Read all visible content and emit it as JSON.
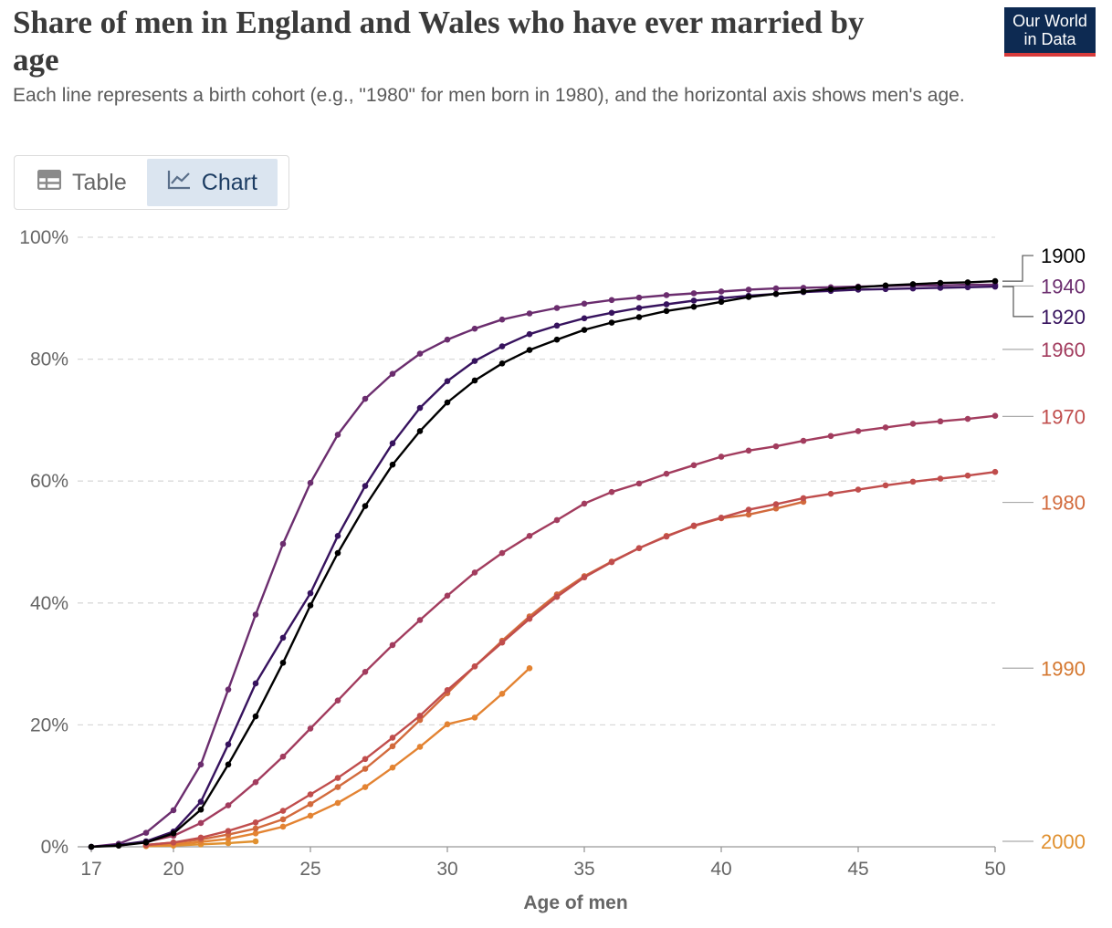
{
  "header": {
    "title": "Share of men in England and Wales who have ever married by age",
    "subtitle": "Each line represents a birth cohort (e.g., \"1980\" for men born in 1980), and the horizontal axis shows men's age.",
    "logo_line1": "Our World",
    "logo_line2": "in Data",
    "logo_bg": "#0d2a52",
    "logo_accent": "#d73b3b"
  },
  "tabs": [
    {
      "label": "Table",
      "icon": "table-icon",
      "active": false
    },
    {
      "label": "Chart",
      "icon": "line-chart-icon",
      "active": true
    }
  ],
  "chart_data": {
    "type": "line",
    "xlabel": "Age of men",
    "ylabel": "",
    "xlim": [
      16.5,
      50
    ],
    "ylim": [
      0,
      100
    ],
    "x_ticks": [
      17,
      20,
      25,
      30,
      35,
      40,
      45,
      50
    ],
    "y_ticks": [
      0,
      20,
      40,
      60,
      80,
      100
    ],
    "y_tick_labels": [
      "0%",
      "20%",
      "40%",
      "60%",
      "80%",
      "100%"
    ],
    "grid": "horizontal-dashed",
    "legend": "right-labels",
    "series": [
      {
        "name": "2000",
        "color": "#e0902f",
        "x": [
          19,
          20,
          21,
          22,
          23
        ],
        "y": [
          0.1,
          0.2,
          0.4,
          0.6,
          0.9
        ]
      },
      {
        "name": "1990",
        "color": "#e38332",
        "x": [
          19,
          20,
          21,
          22,
          23,
          24,
          25,
          26,
          27,
          28,
          29,
          30,
          31,
          32,
          33
        ],
        "y": [
          0.2,
          0.4,
          0.8,
          1.3,
          2.2,
          3.3,
          5.1,
          7.2,
          9.8,
          13.0,
          16.4,
          20.1,
          21.2,
          25.1,
          29.3
        ]
      },
      {
        "name": "1980",
        "color": "#d26a3c",
        "x": [
          19,
          20,
          21,
          22,
          23,
          24,
          25,
          26,
          27,
          28,
          29,
          30,
          31,
          32,
          33,
          34,
          35,
          36,
          37,
          38,
          39,
          40,
          41,
          42,
          43
        ],
        "y": [
          0.3,
          0.7,
          1.2,
          2.0,
          3.0,
          4.5,
          7.0,
          9.8,
          12.8,
          16.5,
          20.8,
          25.2,
          29.6,
          33.8,
          37.8,
          41.4,
          44.4,
          46.8,
          49.0,
          51.0,
          52.6,
          53.9,
          54.5,
          55.5,
          56.6
        ]
      },
      {
        "name": "1970",
        "color": "#c04d4c",
        "x": [
          19,
          20,
          21,
          22,
          23,
          24,
          25,
          26,
          27,
          28,
          29,
          30,
          31,
          32,
          33,
          34,
          35,
          36,
          37,
          38,
          39,
          40,
          41,
          42,
          43,
          44,
          45,
          46,
          47,
          48,
          49,
          50
        ],
        "y": [
          0.3,
          0.7,
          1.5,
          2.6,
          4.0,
          5.9,
          8.6,
          11.3,
          14.4,
          17.9,
          21.5,
          25.7,
          29.6,
          33.5,
          37.4,
          41.0,
          44.2,
          46.7,
          49.0,
          50.9,
          52.7,
          54.0,
          55.3,
          56.2,
          57.2,
          57.9,
          58.6,
          59.3,
          59.9,
          60.4,
          60.9,
          61.5
        ]
      },
      {
        "name": "1960",
        "color": "#a23c5e",
        "x": [
          18,
          19,
          20,
          21,
          22,
          23,
          24,
          25,
          26,
          27,
          28,
          29,
          30,
          31,
          32,
          33,
          34,
          35,
          36,
          37,
          38,
          39,
          40,
          41,
          42,
          43,
          44,
          45,
          46,
          47,
          48,
          49,
          50
        ],
        "y": [
          0.2,
          0.8,
          1.8,
          3.9,
          6.8,
          10.6,
          14.8,
          19.4,
          24.0,
          28.7,
          33.1,
          37.2,
          41.2,
          45.0,
          48.2,
          51.0,
          53.6,
          56.3,
          58.2,
          59.6,
          61.2,
          62.6,
          64.0,
          65.0,
          65.7,
          66.6,
          67.4,
          68.2,
          68.8,
          69.4,
          69.8,
          70.2,
          70.7
        ]
      },
      {
        "name": "1940",
        "color": "#6b2d6e",
        "x": [
          17,
          18,
          19,
          20,
          21,
          22,
          23,
          24,
          25,
          26,
          27,
          28,
          29,
          30,
          31,
          32,
          33,
          34,
          35,
          36,
          37,
          38,
          39,
          40,
          41,
          42,
          43,
          44,
          45,
          46,
          47,
          48,
          49,
          50
        ],
        "y": [
          0.0,
          0.5,
          2.3,
          6.0,
          13.5,
          25.8,
          38.1,
          49.7,
          59.7,
          67.6,
          73.5,
          77.6,
          80.9,
          83.2,
          85.0,
          86.5,
          87.5,
          88.4,
          89.1,
          89.7,
          90.1,
          90.5,
          90.8,
          91.1,
          91.4,
          91.6,
          91.7,
          91.8,
          91.9,
          92.0,
          92.1,
          92.1,
          92.2,
          92.2
        ]
      },
      {
        "name": "1920",
        "color": "#37135e",
        "x": [
          17,
          18,
          19,
          20,
          21,
          22,
          23,
          24,
          25,
          26,
          27,
          28,
          29,
          30,
          31,
          32,
          33,
          34,
          35,
          36,
          37,
          38,
          39,
          40,
          41,
          42,
          43,
          44,
          45,
          46,
          47,
          48,
          49,
          50
        ],
        "y": [
          0.0,
          0.3,
          0.9,
          2.5,
          7.4,
          16.8,
          26.8,
          34.3,
          41.6,
          51.0,
          59.2,
          66.2,
          72.0,
          76.4,
          79.7,
          82.1,
          84.1,
          85.5,
          86.7,
          87.6,
          88.4,
          89.0,
          89.6,
          90.0,
          90.4,
          90.7,
          91.0,
          91.2,
          91.4,
          91.5,
          91.6,
          91.7,
          91.8,
          91.9
        ]
      },
      {
        "name": "1900",
        "color": "#000000",
        "x": [
          17,
          18,
          19,
          20,
          21,
          22,
          23,
          24,
          25,
          26,
          27,
          28,
          29,
          30,
          31,
          32,
          33,
          34,
          35,
          36,
          37,
          38,
          39,
          40,
          41,
          42,
          43,
          44,
          45,
          46,
          47,
          48,
          49,
          50
        ],
        "y": [
          0.0,
          0.2,
          0.7,
          2.2,
          6.1,
          13.5,
          21.4,
          30.2,
          39.6,
          48.2,
          55.9,
          62.7,
          68.2,
          72.9,
          76.5,
          79.3,
          81.5,
          83.2,
          84.8,
          86.0,
          86.9,
          87.9,
          88.6,
          89.4,
          90.2,
          90.7,
          91.1,
          91.5,
          91.8,
          92.1,
          92.3,
          92.5,
          92.6,
          92.8
        ]
      }
    ],
    "labels": [
      {
        "name": "1900",
        "color": "#000000",
        "label_y": 97.0
      },
      {
        "name": "1940",
        "color": "#6b2d6e",
        "label_y": 92.0
      },
      {
        "name": "1920",
        "color": "#37135e",
        "label_y": 87.0
      },
      {
        "name": "1960",
        "color": "#a23c5e",
        "label_y": 81.6
      },
      {
        "name": "1970",
        "color": "#c04d4c",
        "label_y": 70.6
      },
      {
        "name": "1980",
        "color": "#d26a3c",
        "label_y": 56.5
      },
      {
        "name": "1990",
        "color": "#d4772f",
        "label_y": 29.3
      },
      {
        "name": "2000",
        "color": "#e0902f",
        "label_y": 0.9
      }
    ]
  }
}
